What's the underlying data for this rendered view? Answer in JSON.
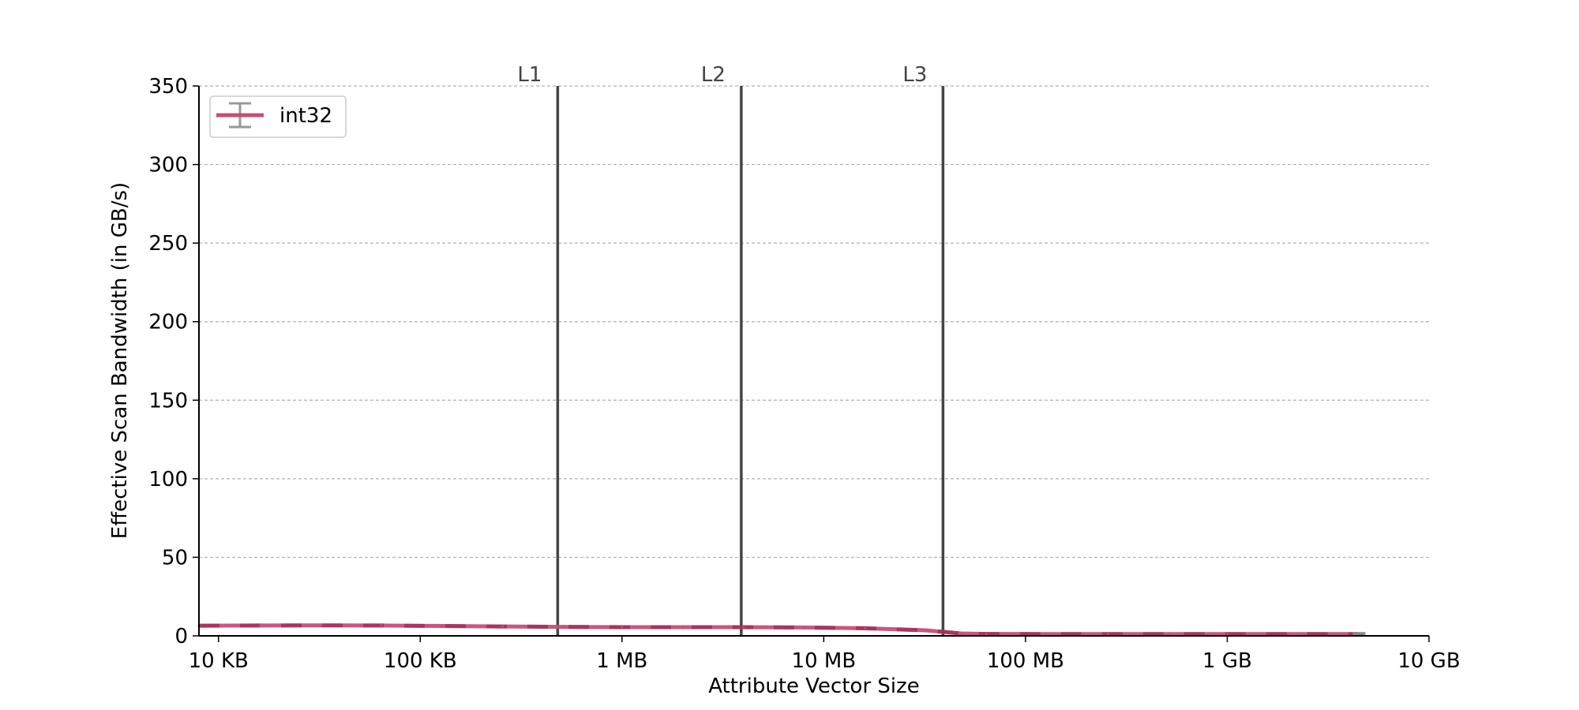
{
  "chart_data": {
    "type": "line",
    "title": "",
    "xlabel": "Attribute Vector Size",
    "ylabel": "Effective Scan Bandwidth (in GB/s)",
    "xscale": "log",
    "xlim_bytes": [
      8000,
      10000000000
    ],
    "ylim": [
      0,
      350
    ],
    "grid": "horizontal dashed",
    "x_ticks": [
      {
        "label": "10 KB",
        "value": 10000
      },
      {
        "label": "100 KB",
        "value": 100000
      },
      {
        "label": "1 MB",
        "value": 1000000
      },
      {
        "label": "10 MB",
        "value": 10000000
      },
      {
        "label": "100 MB",
        "value": 100000000
      },
      {
        "label": "1 GB",
        "value": 1000000000
      },
      {
        "label": "10 GB",
        "value": 10000000000
      }
    ],
    "y_ticks": [
      0,
      50,
      100,
      150,
      200,
      250,
      300,
      350
    ],
    "cache_lines": [
      {
        "label": "L1",
        "value": 480000
      },
      {
        "label": "L2",
        "value": 3900000
      },
      {
        "label": "L3",
        "value": 39000000
      }
    ],
    "legend": {
      "placement": "top-left",
      "entries": [
        "int32"
      ]
    },
    "series": [
      {
        "name": "int32",
        "color": "#c44e7a",
        "x": [
          8000,
          16000,
          32000,
          64000,
          128000,
          256000,
          512000,
          1000000,
          2000000,
          4000000,
          8000000,
          16000000,
          32000000,
          48000000,
          64000000,
          128000000,
          256000000,
          512000000,
          1000000000,
          2000000000,
          4500000000
        ],
        "y": [
          6.5,
          6.6,
          6.7,
          6.6,
          6.3,
          6.0,
          5.7,
          5.5,
          5.5,
          5.5,
          5.3,
          4.8,
          3.5,
          1.5,
          1.2,
          1.1,
          1.1,
          1.1,
          1.1,
          1.1,
          1.1
        ]
      }
    ]
  }
}
